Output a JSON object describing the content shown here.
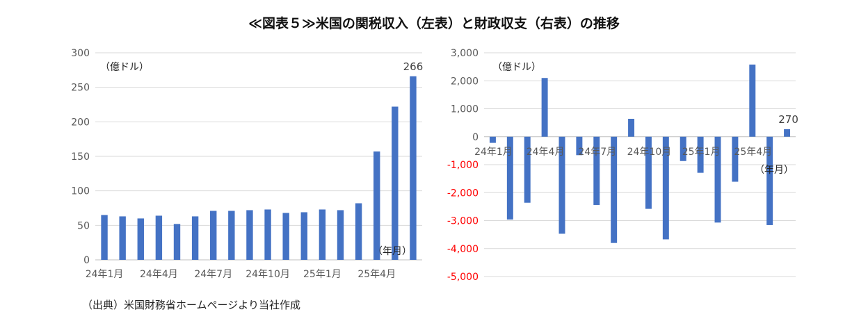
{
  "title": "≪図表５≫米国の関税収入（左表）と財政収支（右表）の推移",
  "source": "（出典）米国財務省ホームページより当社作成",
  "colors": {
    "bar": "#4472c4",
    "grid": "#d9d9d9",
    "negative_tick": "#ff0000"
  },
  "chart_data": [
    {
      "type": "bar",
      "title": "",
      "unit_label": "（億ドル）",
      "x_unit_label": "（年月）",
      "ylim": [
        0,
        300
      ],
      "yticks": [
        0,
        50,
        100,
        150,
        200,
        250,
        300
      ],
      "ytick_labels": [
        "0",
        "50",
        "100",
        "150",
        "200",
        "250",
        "300"
      ],
      "categories": [
        "24年1月",
        "24年2月",
        "24年3月",
        "24年4月",
        "24年5月",
        "24年6月",
        "24年7月",
        "24年8月",
        "24年9月",
        "24年10月",
        "24年11月",
        "24年12月",
        "25年1月",
        "25年2月",
        "25年3月",
        "25年4月",
        "25年5月",
        "25年6月"
      ],
      "xtick_labels": [
        "24年1月",
        "24年4月",
        "24年7月",
        "24年10月",
        "25年1月",
        "25年4月"
      ],
      "xtick_index": [
        0,
        3,
        6,
        9,
        12,
        15
      ],
      "values": [
        65,
        63,
        60,
        64,
        52,
        63,
        71,
        71,
        72,
        73,
        68,
        69,
        73,
        72,
        82,
        157,
        222,
        266
      ],
      "data_labels": [
        {
          "index": 17,
          "text": "266"
        }
      ]
    },
    {
      "type": "bar",
      "title": "",
      "unit_label": "（億ドル）",
      "x_unit_label": "（年月）",
      "ylim": [
        -5000,
        3000
      ],
      "yticks": [
        -5000,
        -4000,
        -3000,
        -2000,
        -1000,
        0,
        1000,
        2000,
        3000
      ],
      "ytick_labels": [
        "-5,000",
        "-4,000",
        "-3,000",
        "-2,000",
        "-1,000",
        "0",
        "1,000",
        "2,000",
        "3,000"
      ],
      "categories": [
        "24年1月",
        "24年2月",
        "24年3月",
        "24年4月",
        "24年5月",
        "24年6月",
        "24年7月",
        "24年8月",
        "24年9月",
        "24年10月",
        "24年11月",
        "24年12月",
        "25年1月",
        "25年2月",
        "25年3月",
        "25年4月",
        "25年5月",
        "25年6月"
      ],
      "xtick_labels": [
        "24年1月",
        "24年4月",
        "24年7月",
        "24年10月",
        "25年1月",
        "25年4月"
      ],
      "xtick_index": [
        0,
        3,
        6,
        9,
        12,
        15
      ],
      "values": [
        -220,
        -2960,
        -2360,
        2100,
        -3470,
        -660,
        -2440,
        -3800,
        640,
        -2580,
        -3670,
        -870,
        -1290,
        -3070,
        -1610,
        2580,
        -3160,
        270
      ],
      "data_labels": [
        {
          "index": 17,
          "text": "270"
        }
      ]
    }
  ]
}
